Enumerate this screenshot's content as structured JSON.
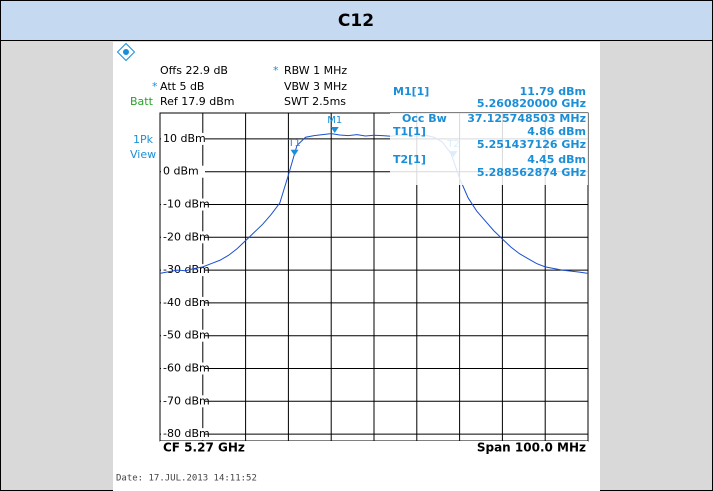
{
  "header": "C12",
  "settings": {
    "offs": "Offs 22.9 dB",
    "star1": "*",
    "rbw": "RBW 1 MHz",
    "star2": "*",
    "att": "Att 5 dB",
    "vbw": "VBW 3 MHz",
    "batt": "Batt",
    "ref": "Ref 17.9 dBm",
    "swt": "SWT 2.5ms",
    "trace_mode": "1Pk",
    "view": "View"
  },
  "marker_table": [
    [
      "M1[1]",
      "11.79 dBm"
    ],
    [
      "5.260820000 GHz"
    ],
    [
      "Occ Bw",
      "37.125748503 MHz"
    ],
    [
      "T1[1]",
      "4.86 dBm"
    ],
    [
      "5.251437126 GHz"
    ],
    [
      "T2[1]",
      "4.45 dBm"
    ],
    [
      "5.288562874 GHz"
    ]
  ],
  "chart_data": {
    "type": "line",
    "x": [
      5.22,
      5.222,
      5.224,
      5.226,
      5.228,
      5.23,
      5.232,
      5.234,
      5.236,
      5.238,
      5.24,
      5.242,
      5.244,
      5.246,
      5.248,
      5.25,
      5.252,
      5.254,
      5.256,
      5.258,
      5.26,
      5.262,
      5.264,
      5.266,
      5.268,
      5.27,
      5.272,
      5.274,
      5.276,
      5.278,
      5.28,
      5.282,
      5.284,
      5.286,
      5.288,
      5.29,
      5.292,
      5.294,
      5.296,
      5.298,
      5.3,
      5.302,
      5.304,
      5.306,
      5.308,
      5.31,
      5.312,
      5.314,
      5.316,
      5.318,
      5.32
    ],
    "series": [
      {
        "color": "#1a4fd0",
        "values": [
          -31,
          -30.5,
          -30,
          -30.2,
          -29.5,
          -29,
          -28,
          -27,
          -25.5,
          -23.5,
          -21,
          -18.5,
          -16,
          -13,
          -9.5,
          -1,
          8,
          10.5,
          11,
          11.3,
          11.6,
          11.2,
          11,
          11.3,
          10.9,
          11.1,
          11,
          10.8,
          11.2,
          11,
          10.9,
          11.1,
          10.5,
          9,
          5.5,
          -2,
          -8,
          -12,
          -15,
          -18,
          -20.5,
          -23,
          -25,
          -26.5,
          -28,
          -29,
          -29.5,
          -30,
          -30.3,
          -30.6,
          -31
        ]
      }
    ],
    "markers": [
      {
        "name": "M1",
        "x": 5.26082,
        "y": 11.79
      },
      {
        "name": "T1",
        "x": 5.251437126,
        "y": 4.86
      },
      {
        "name": "T2",
        "x": 5.288562874,
        "y": 4.45
      }
    ],
    "xlim": [
      5.22,
      5.32
    ],
    "ylim": [
      -82.1,
      17.9
    ],
    "yticks": [
      {
        "value": 10,
        "label": "10 dBm"
      },
      {
        "value": 0,
        "label": "0 dBm"
      },
      {
        "value": -10,
        "label": "-10 dBm"
      },
      {
        "value": -20,
        "label": "-20 dBm"
      },
      {
        "value": -30,
        "label": "-30 dBm"
      },
      {
        "value": -40,
        "label": "-40 dBm"
      },
      {
        "value": -50,
        "label": "-50 dBm"
      },
      {
        "value": -60,
        "label": "-60 dBm"
      },
      {
        "value": -70,
        "label": "-70 dBm"
      },
      {
        "value": -80,
        "label": "-80 dBm"
      }
    ],
    "xdivisions": 10,
    "grid": true,
    "center": "CF 5.27 GHz",
    "span": "Span 100.0 MHz"
  },
  "footer": "Date: 17.JUL.2013  14:11:52"
}
